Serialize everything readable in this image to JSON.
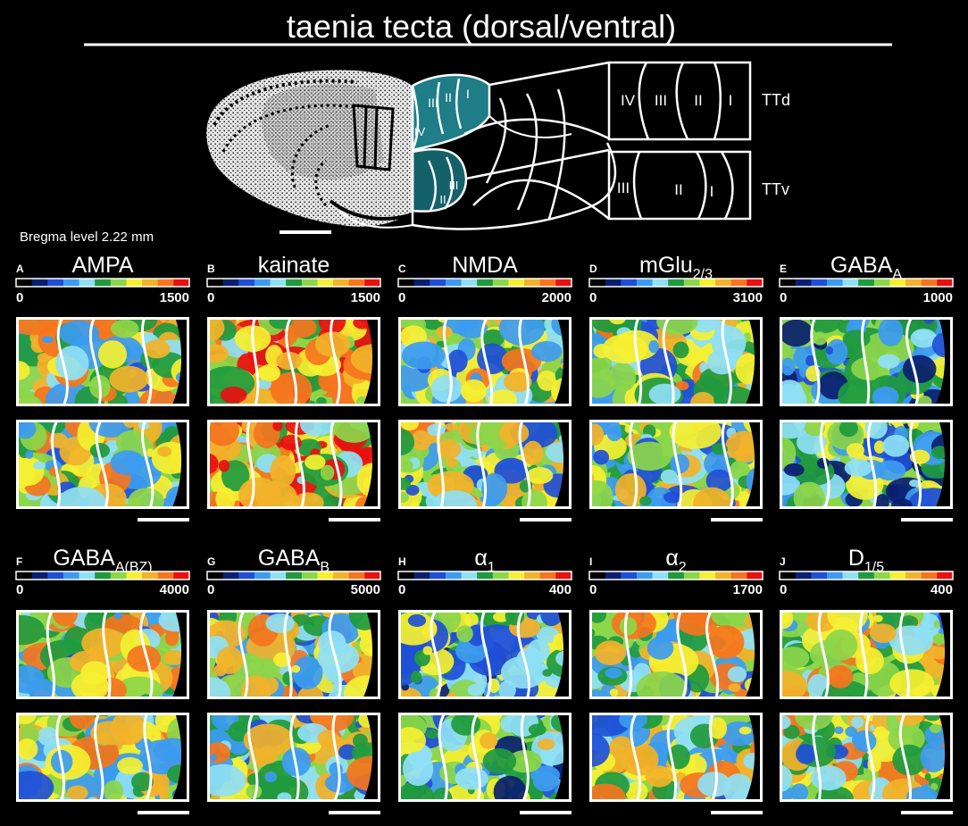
{
  "figure": {
    "title": "taenia tecta (dorsal/ventral)",
    "bregma_label": "Bregma level 2.22 mm",
    "schematic": {
      "dorsal_label": "TTd",
      "ventral_label": "TTv",
      "dorsal_layers": [
        "IV",
        "III",
        "II",
        "I"
      ],
      "ventral_layers": [
        "III",
        "II",
        "I"
      ],
      "overlay_dorsal_layers": [
        "III",
        "II",
        "I"
      ],
      "overlay_dorsal_extra": "IV",
      "overlay_ventral_layers": [
        "III",
        "II"
      ]
    },
    "colors": {
      "background": "#000000",
      "teal_highlight": "#1e7d87",
      "teal_dark": "#14616a",
      "colormap": [
        "#000000",
        "#0a1f6e",
        "#1f4fd6",
        "#3c9bf0",
        "#8fe0f5",
        "#1f9a3e",
        "#8cd64a",
        "#f5f032",
        "#f2b22a",
        "#f5751e",
        "#e81010"
      ]
    },
    "panels": [
      {
        "letter": "A",
        "receptor": "AMPA",
        "sub": "",
        "min": "0",
        "max": "1500",
        "seed": 11,
        "level": 0.62
      },
      {
        "letter": "B",
        "receptor": "kainate",
        "sub": "",
        "min": "0",
        "max": "1500",
        "seed": 22,
        "level": 0.8
      },
      {
        "letter": "C",
        "receptor": "NMDA",
        "sub": "",
        "min": "0",
        "max": "2000",
        "seed": 33,
        "level": 0.6
      },
      {
        "letter": "D",
        "receptor": "mGlu",
        "sub": "2/3",
        "min": "0",
        "max": "3100",
        "seed": 44,
        "level": 0.58
      },
      {
        "letter": "E",
        "receptor": "GABA",
        "sub": "A",
        "min": "0",
        "max": "1000",
        "seed": 55,
        "level": 0.42
      },
      {
        "letter": "F",
        "receptor": "GABA",
        "sub": "A(BZ)",
        "min": "0",
        "max": "4000",
        "seed": 66,
        "level": 0.63
      },
      {
        "letter": "G",
        "receptor": "GABA",
        "sub": "B",
        "min": "0",
        "max": "5000",
        "seed": 77,
        "level": 0.6
      },
      {
        "letter": "H",
        "receptor": "α",
        "sub": "1",
        "min": "0",
        "max": "400",
        "seed": 88,
        "level": 0.5
      },
      {
        "letter": "I",
        "receptor": "α",
        "sub": "2",
        "min": "0",
        "max": "1700",
        "seed": 99,
        "level": 0.62
      },
      {
        "letter": "J",
        "receptor": "D",
        "sub": "1/5",
        "min": "0",
        "max": "400",
        "seed": 111,
        "level": 0.62
      }
    ]
  }
}
